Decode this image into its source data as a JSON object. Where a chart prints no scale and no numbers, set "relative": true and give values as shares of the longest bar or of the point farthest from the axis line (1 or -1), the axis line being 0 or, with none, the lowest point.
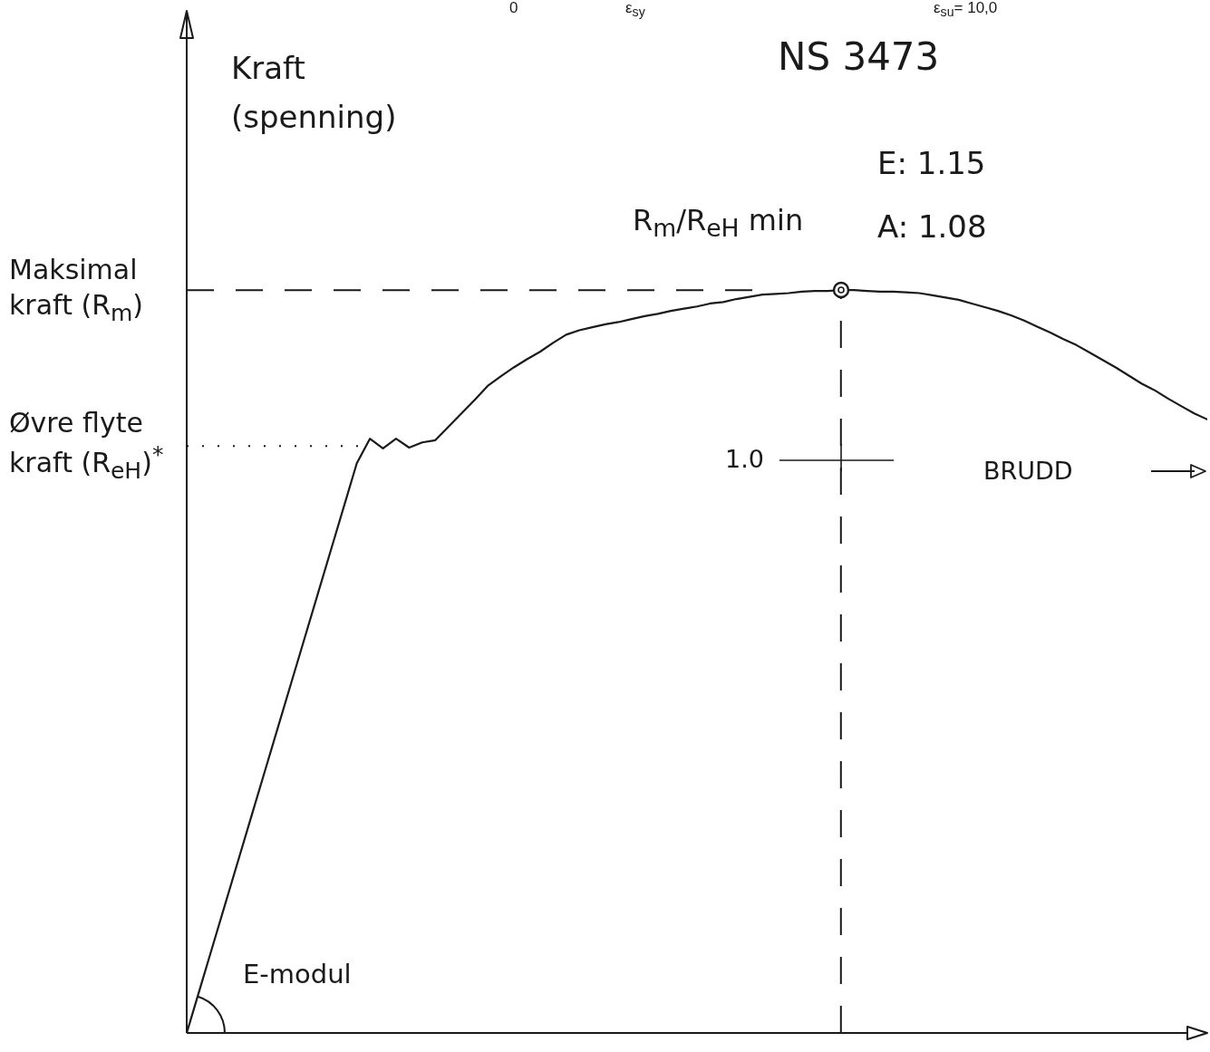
{
  "chart_data": {
    "type": "line",
    "title": "NS 3473",
    "relative": true,
    "categories": [
      null,
      null,
      null,
      null,
      null,
      null,
      null,
      null,
      null,
      null,
      null,
      null,
      null,
      null,
      null,
      null,
      null,
      null,
      null,
      null,
      null,
      null,
      null,
      null,
      null,
      null,
      null,
      null,
      null,
      null,
      null,
      null,
      null,
      null,
      null,
      null,
      null,
      null,
      null,
      null,
      null,
      null,
      null,
      null,
      null,
      null,
      null,
      null,
      null,
      null,
      null,
      null,
      null,
      null,
      null,
      null,
      null,
      null,
      null,
      null,
      null,
      null,
      null,
      null,
      null,
      null,
      null,
      null,
      null,
      null,
      null,
      null,
      null,
      null,
      null,
      null,
      null,
      null,
      null
    ],
    "series": [
      {
        "color": "#1a1a1a",
        "values": [
          0,
          0.059,
          0.118,
          0.177,
          0.236,
          0.295,
          0.354,
          0.413,
          0.472,
          0.531,
          0.59,
          0.649,
          0.708,
          0.767,
          0.8,
          0.787,
          0.8,
          0.788,
          0.795,
          0.798,
          0.816,
          0.834,
          0.852,
          0.871,
          0.884,
          0.896,
          0.907,
          0.917,
          0.929,
          0.94,
          0.946,
          0.95,
          0.954,
          0.957,
          0.961,
          0.965,
          0.968,
          0.972,
          0.975,
          0.978,
          0.982,
          0.984,
          0.988,
          0.991,
          0.994,
          0.995,
          0.996,
          0.998,
          0.999,
          0.999,
          1,
          1,
          0.999,
          0.998,
          0.998,
          0.997,
          0.996,
          0.993,
          0.99,
          0.987,
          0.982,
          0.977,
          0.972,
          0.966,
          0.959,
          0.951,
          0.943,
          0.934,
          0.926,
          0.916,
          0.906,
          0.896,
          0.885,
          0.874,
          0.865,
          0.854,
          0.844,
          0.834,
          0.826
        ]
      }
    ],
    "ref_lines": [
      {
        "axis": "y",
        "value": 1,
        "label": "Maksimal kraft (R$_{m}$)",
        "line_style": "dashed"
      },
      {
        "axis": "y",
        "value": 0.79,
        "label": "Øvre flyte kraft (R$_{eH}$)$^{*}$",
        "line_style": "dotted"
      }
    ],
    "annotations": [
      "0",
      "ε$_{sy}$",
      "ε$_{su}$= 10,0",
      "R$_{m}$/R$_{eH}$ min",
      "E: 1.15",
      "A: 1.08",
      "1.0",
      "BRUDD",
      "E-modul",
      "Kraft (spenning)"
    ]
  }
}
